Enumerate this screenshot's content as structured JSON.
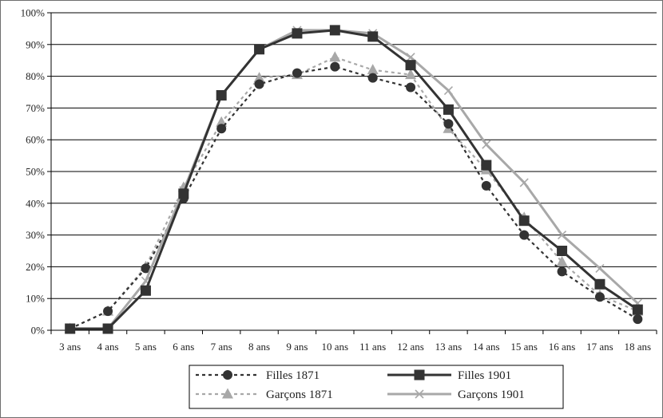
{
  "chart_data": {
    "type": "line",
    "title": "",
    "xlabel": "",
    "ylabel": "",
    "categories": [
      "3 ans",
      "4 ans",
      "5 ans",
      "6 ans",
      "7 ans",
      "8 ans",
      "9 ans",
      "10 ans",
      "11 ans",
      "12 ans",
      "13 ans",
      "14 ans",
      "15 ans",
      "16 ans",
      "17 ans",
      "18 ans"
    ],
    "ylim": [
      0,
      100
    ],
    "y_ticks": [
      "0%",
      "10%",
      "20%",
      "30%",
      "40%",
      "50%",
      "60%",
      "70%",
      "80%",
      "90%",
      "100%"
    ],
    "grid": "horizontal",
    "legend_position": "bottom",
    "series": [
      {
        "name": "Filles 1871",
        "color": "#333333",
        "dash": true,
        "marker": "circle",
        "values": [
          0.5,
          6,
          19.5,
          41.5,
          63.5,
          77.5,
          81,
          83,
          79.5,
          76.5,
          65,
          45.5,
          30,
          18.5,
          10.5,
          3.5
        ]
      },
      {
        "name": "Filles 1901",
        "color": "#333333",
        "dash": false,
        "marker": "square",
        "values": [
          0.5,
          0.5,
          12.5,
          43,
          74,
          88.5,
          93.5,
          94.5,
          92.5,
          83.5,
          69.5,
          52,
          34.5,
          25,
          14.5,
          6.5
        ]
      },
      {
        "name": "Garçons 1871",
        "color": "#a8a8a8",
        "dash": true,
        "marker": "triangle",
        "values": [
          0.5,
          6,
          20,
          45,
          65.5,
          79.5,
          80.5,
          86,
          82,
          80.5,
          63.5,
          50.5,
          35.5,
          21.5,
          11,
          6
        ]
      },
      {
        "name": "Garçons 1901",
        "color": "#a8a8a8",
        "dash": false,
        "marker": "x",
        "values": [
          0.5,
          0.5,
          15.5,
          44,
          74,
          88.5,
          94.5,
          94.5,
          93.5,
          86,
          75.5,
          58.5,
          46.5,
          30,
          19.5,
          8.5
        ]
      }
    ]
  }
}
